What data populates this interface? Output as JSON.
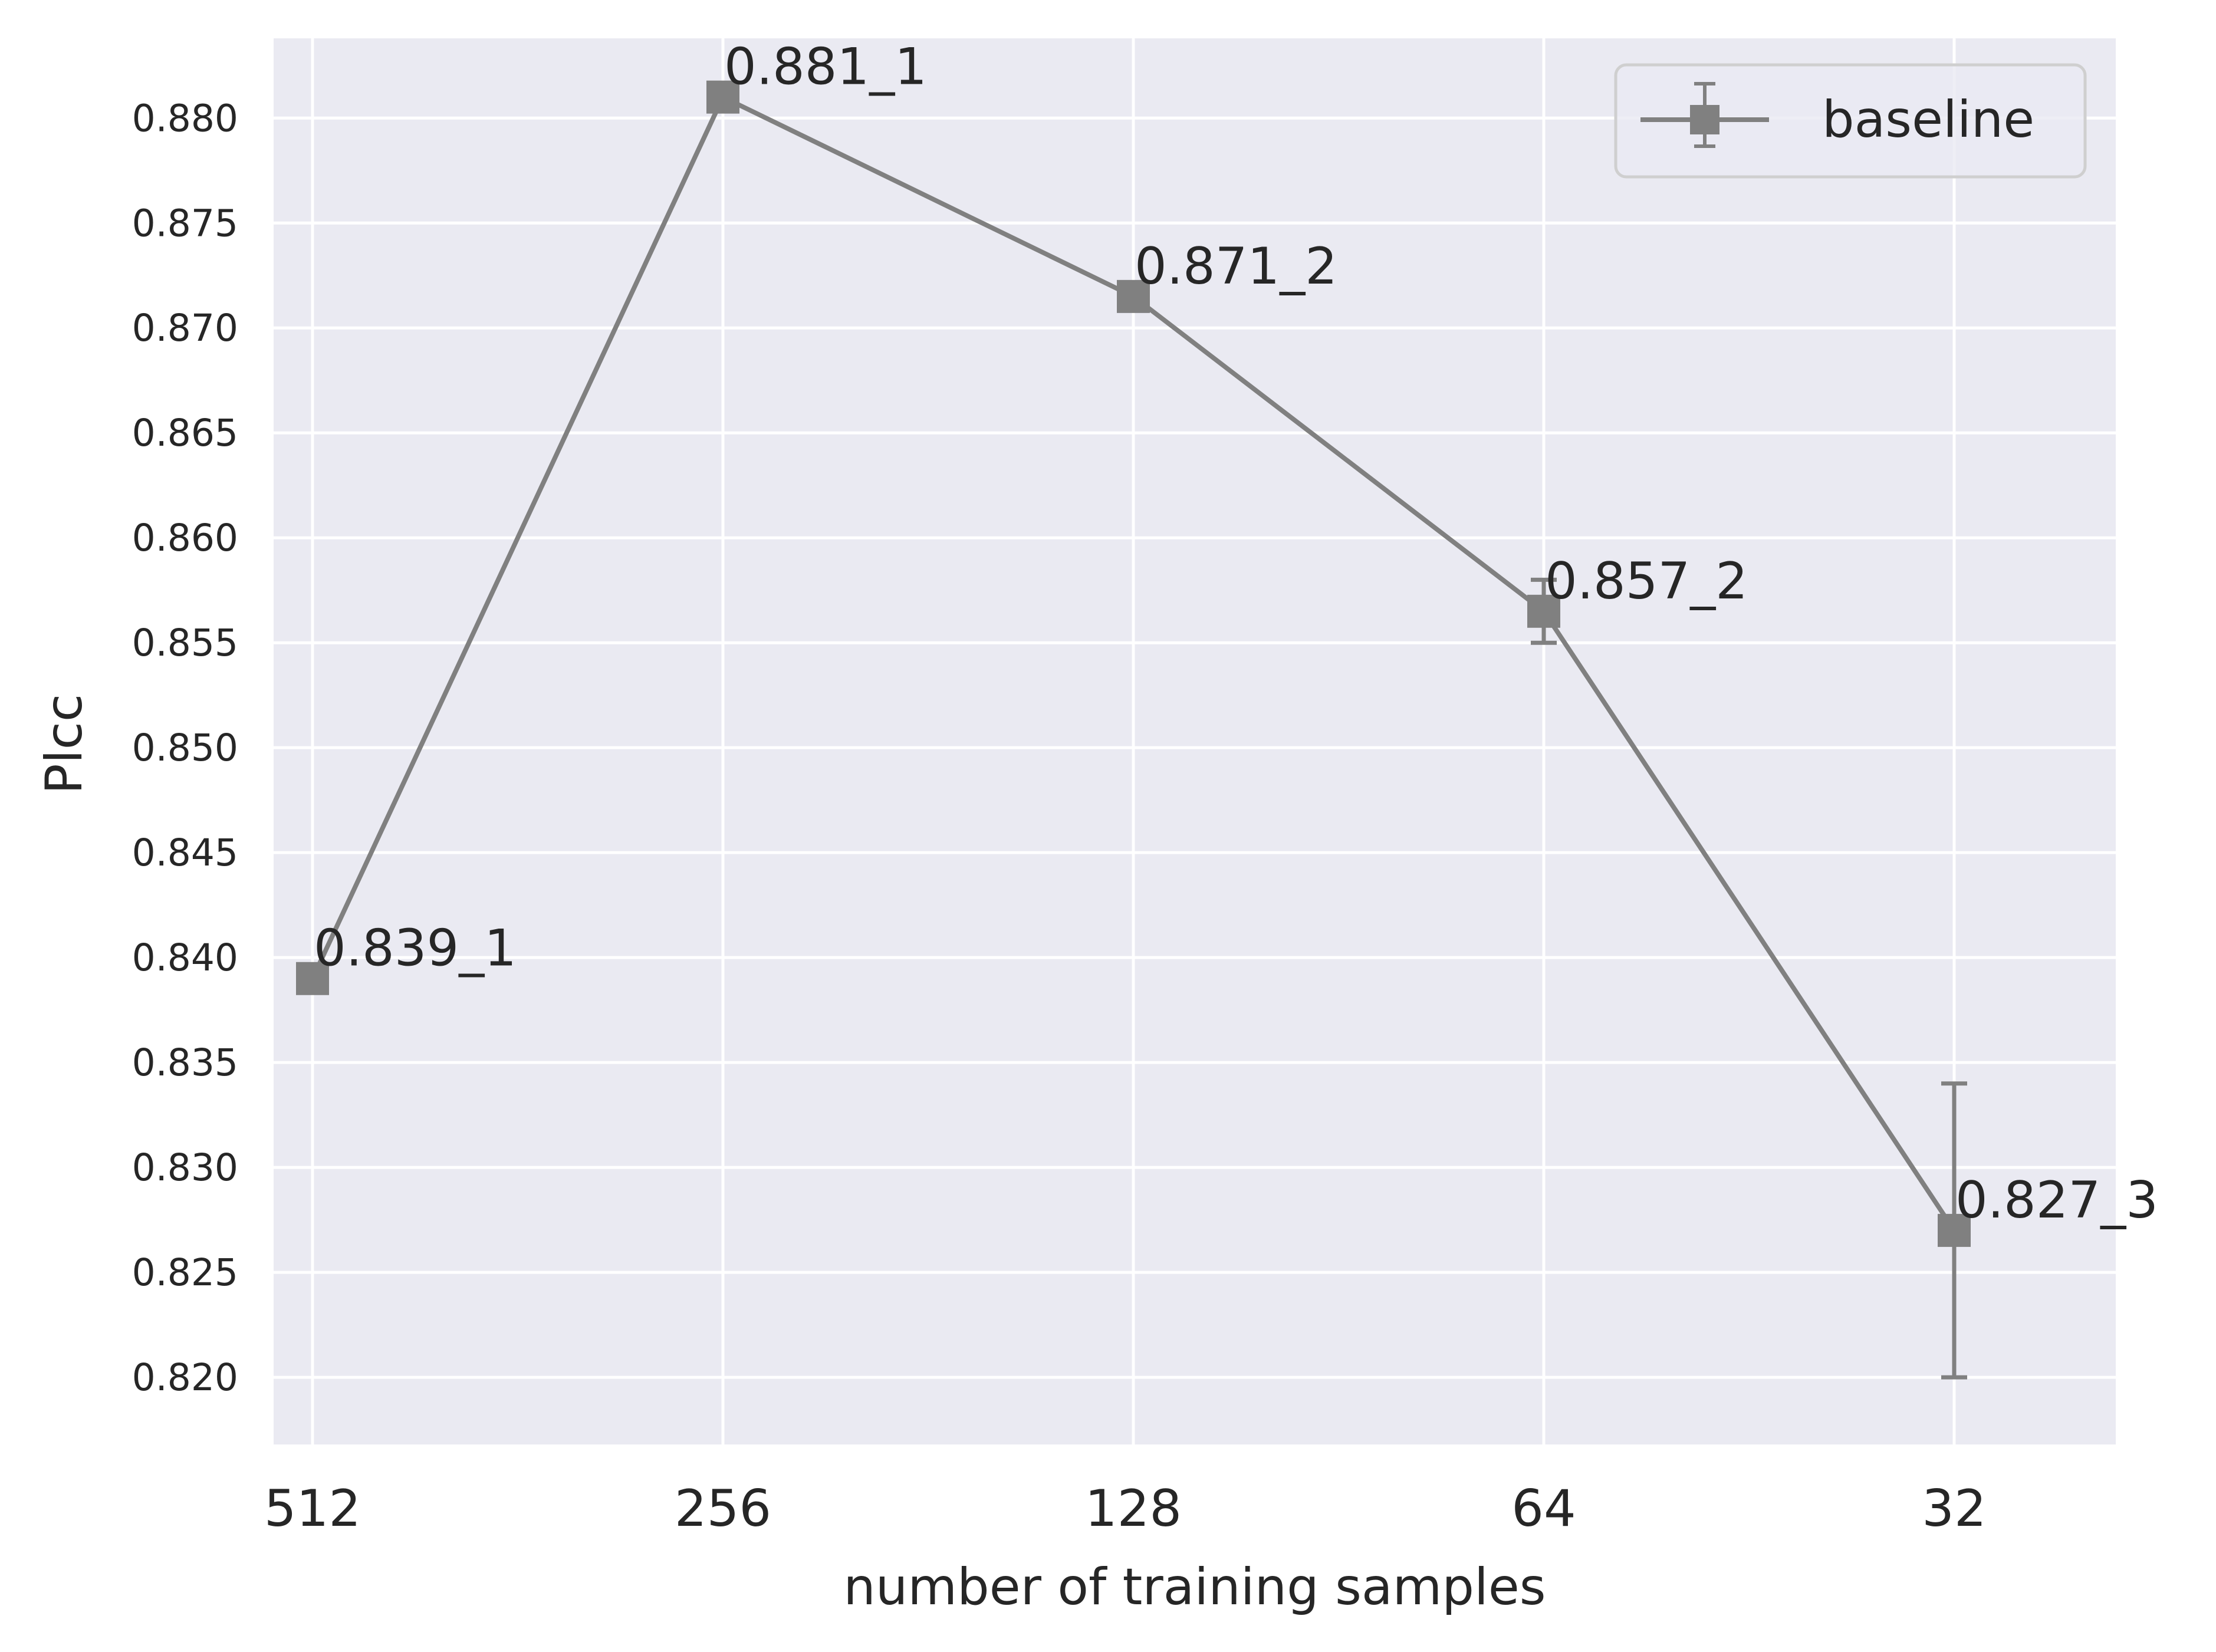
{
  "chart_data": {
    "type": "line",
    "xlabel": "number of training samples",
    "ylabel": "Plcc",
    "categories": [
      "512",
      "256",
      "128",
      "64",
      "32"
    ],
    "yticks": [
      "0.820",
      "0.825",
      "0.830",
      "0.835",
      "0.840",
      "0.845",
      "0.850",
      "0.855",
      "0.860",
      "0.865",
      "0.870",
      "0.875",
      "0.880"
    ],
    "ylim": [
      0.8168,
      0.8838
    ],
    "grid": true,
    "legend_position": "top-right",
    "series": [
      {
        "name": "baseline",
        "marker": "square",
        "color": "#808080",
        "values": [
          0.839,
          0.881,
          0.8715,
          0.8565,
          0.827
        ],
        "error": [
          0.0,
          0.0,
          0.0,
          0.0015,
          0.007
        ],
        "labels": [
          "0.839_1",
          "0.881_1",
          "0.871_2",
          "0.857_2",
          "0.827_3"
        ]
      }
    ],
    "colors": {
      "plot_background": "#eaeaf2",
      "grid": "#ffffff",
      "text": "#262626"
    }
  }
}
